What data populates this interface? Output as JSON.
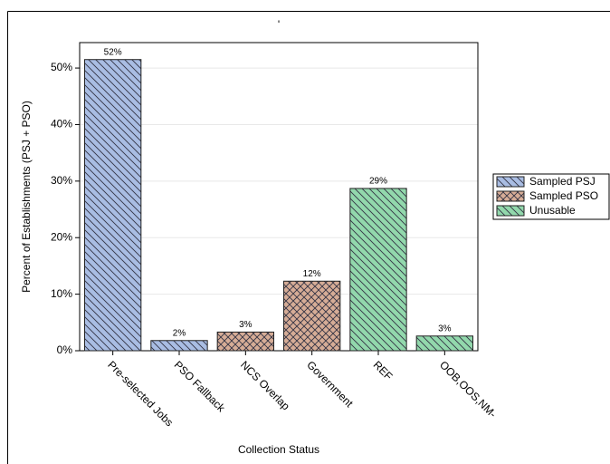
{
  "chart_data": {
    "type": "bar",
    "title": "'",
    "x_label": "Collection Status",
    "y_label": "Percent of Establishments (PSJ + PSO)",
    "categories": [
      "Pre-selected Jobs",
      "PSO Fallback",
      "NCS Overlap",
      "Government",
      "REF",
      "OOB,OOS,NM-"
    ],
    "series": [
      {
        "name": "Sampled PSJ",
        "color": "#a9bde3",
        "pattern": "diagonal",
        "values": [
          51.5,
          1.8,
          null,
          null,
          null,
          null
        ],
        "value_labels": [
          "52%",
          "2%",
          null,
          null,
          null,
          null
        ]
      },
      {
        "name": "Sampled PSO",
        "color": "#d6ac96",
        "pattern": "crosshatch",
        "values": [
          null,
          null,
          3.3,
          12.3,
          null,
          null
        ],
        "value_labels": [
          null,
          null,
          "3%",
          "12%",
          null,
          null
        ]
      },
      {
        "name": "Unusable",
        "color": "#92d8ac",
        "pattern": "diagonal",
        "values": [
          null,
          null,
          null,
          null,
          28.7,
          2.6
        ],
        "value_labels": [
          null,
          null,
          null,
          null,
          "29%",
          "3%"
        ]
      }
    ],
    "ylim": [
      0,
      54.5
    ],
    "yticks": [
      {
        "value": 0,
        "label": "0%"
      },
      {
        "value": 10,
        "label": "10%"
      },
      {
        "value": 20,
        "label": "20%"
      },
      {
        "value": 30,
        "label": "30%"
      },
      {
        "value": 40,
        "label": "40%"
      },
      {
        "value": 50,
        "label": "50%"
      }
    ],
    "grid": true,
    "legend": "right"
  }
}
